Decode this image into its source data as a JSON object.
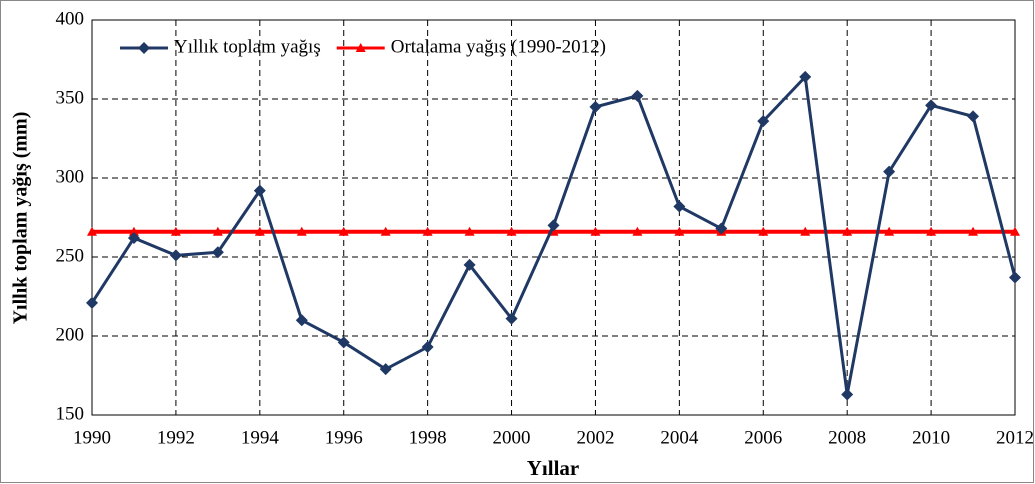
{
  "chart_data": {
    "type": "line",
    "x_label": "Yıllar",
    "y_label": "Yıllık toplam yağış (mm)",
    "x": [
      1990,
      1991,
      1992,
      1993,
      1994,
      1995,
      1996,
      1997,
      1998,
      1999,
      2000,
      2001,
      2002,
      2003,
      2004,
      2005,
      2006,
      2007,
      2008,
      2009,
      2010,
      2011,
      2012
    ],
    "series": [
      {
        "name": "Yıllık toplam yağış",
        "color": "#1f3864",
        "marker": "diamond",
        "values": [
          221,
          262,
          251,
          253,
          292,
          210,
          196,
          179,
          193,
          245,
          211,
          270,
          345,
          352,
          282,
          268,
          336,
          364,
          163,
          304,
          346,
          339,
          237
        ]
      },
      {
        "name": "Ortalama yağış (1990-2012)",
        "color": "#ff0000",
        "marker": "triangle",
        "values": [
          266,
          266,
          266,
          266,
          266,
          266,
          266,
          266,
          266,
          266,
          266,
          266,
          266,
          266,
          266,
          266,
          266,
          266,
          266,
          266,
          266,
          266,
          266
        ]
      }
    ],
    "xlim": [
      1990,
      2012
    ],
    "xticks": [
      1990,
      1992,
      1994,
      1996,
      1998,
      2000,
      2002,
      2004,
      2006,
      2008,
      2010,
      2012
    ],
    "ylim": [
      150,
      400
    ],
    "yticks": [
      150,
      200,
      250,
      300,
      350,
      400
    ],
    "grid": true,
    "legend": "top-left"
  }
}
